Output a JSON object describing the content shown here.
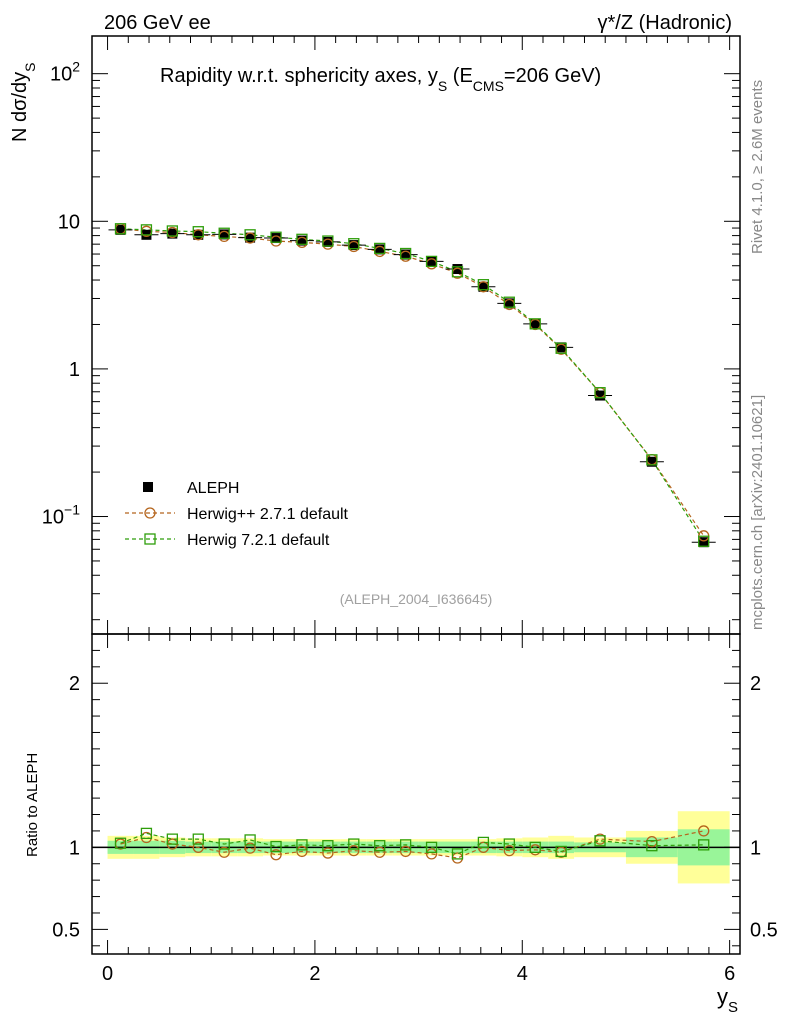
{
  "header": {
    "left_label": "206 GeV ee",
    "right_label": "γ*/Z (Hadronic)"
  },
  "side_labels": {
    "rivet": "Rivet 4.1.0, ≥ 2.6M events",
    "mcplots": "mcplots.cern.ch [arXiv:2401.10621]"
  },
  "colors": {
    "data": "#000000",
    "herwigpp": "#b5651d",
    "herwig7": "#2e9e0a",
    "band_inner": "#99f599",
    "band_outer": "#ffff99"
  },
  "chart_data": [
    {
      "type": "scatter",
      "title": "Rapidity w.r.t. sphericity axes, y_S (E_CMS=206 GeV)",
      "title_parts": {
        "main": "Rapidity w.r.t. sphericity axes, y",
        "sub_s": "S",
        "mid": " (E",
        "sub_cms": "CMS",
        "end": "=206 GeV)"
      },
      "ylabel": "N  dσ/dy_S",
      "ylabel_parts": {
        "main": "N  dσ/dy",
        "sub": "S"
      },
      "xlabel": "y_S",
      "xlabel_parts": {
        "main": "y",
        "sub": "S"
      },
      "yscale": "log",
      "xlim": [
        -0.15,
        6.1
      ],
      "ylim": [
        0.016,
        180
      ],
      "yticks": [
        {
          "value": 100,
          "label": "10",
          "exp": "2"
        },
        {
          "value": 10,
          "label": "10",
          "exp": ""
        },
        {
          "value": 1,
          "label": "1",
          "exp": ""
        },
        {
          "value": 0.1,
          "label": "10",
          "exp": "−1"
        }
      ],
      "x": [
        0.125,
        0.375,
        0.625,
        0.875,
        1.125,
        1.375,
        1.625,
        1.875,
        2.125,
        2.375,
        2.625,
        2.875,
        3.125,
        3.375,
        3.625,
        3.875,
        4.125,
        4.375,
        4.75,
        5.25,
        5.75
      ],
      "series": [
        {
          "name": "ALEPH",
          "marker": "filled-square",
          "values": [
            8.75,
            8.1,
            8.25,
            8.1,
            8.15,
            7.75,
            7.7,
            7.4,
            7.25,
            6.9,
            6.45,
            5.95,
            5.35,
            4.75,
            3.6,
            2.78,
            2.02,
            1.4,
            0.66,
            0.235,
            0.067
          ]
        },
        {
          "name": "Herwig++ 2.7.1 default",
          "marker": "open-circle",
          "values": [
            8.9,
            8.55,
            8.4,
            8.1,
            7.9,
            7.7,
            7.35,
            7.2,
            7.0,
            6.75,
            6.25,
            5.8,
            5.15,
            4.45,
            3.6,
            2.73,
            2.0,
            1.36,
            0.69,
            0.243,
            0.074
          ]
        },
        {
          "name": "Herwig 7.2.1 default",
          "marker": "open-square",
          "values": [
            8.9,
            8.75,
            8.6,
            8.5,
            8.3,
            8.1,
            7.8,
            7.55,
            7.35,
            7.05,
            6.55,
            6.05,
            5.35,
            4.55,
            3.72,
            2.83,
            2.02,
            1.38,
            0.69,
            0.242,
            0.068
          ]
        }
      ],
      "legend": [
        "ALEPH",
        "Herwig++ 2.7.1 default",
        "Herwig 7.2.1 default"
      ],
      "legend_position": "bottom-left",
      "watermark": "(ALEPH_2004_I636645)"
    },
    {
      "type": "line",
      "ylabel": "Ratio to ALEPH",
      "xlabel": "y_S",
      "xlim": [
        -0.15,
        6.1
      ],
      "ylim": [
        0.35,
        2.3
      ],
      "yticks": [
        {
          "value": 0.5,
          "label": "0.5"
        },
        {
          "value": 1,
          "label": "1"
        },
        {
          "value": 2,
          "label": "2"
        }
      ],
      "xticks": [
        {
          "value": 0,
          "label": "0"
        },
        {
          "value": 2,
          "label": "2"
        },
        {
          "value": 4,
          "label": "4"
        },
        {
          "value": 6,
          "label": "6"
        }
      ],
      "x": [
        0.125,
        0.375,
        0.625,
        0.875,
        1.125,
        1.375,
        1.625,
        1.875,
        2.125,
        2.375,
        2.625,
        2.875,
        3.125,
        3.375,
        3.625,
        3.875,
        4.125,
        4.375,
        4.75,
        5.25,
        5.75
      ],
      "bin_edges": [
        0,
        0.25,
        0.5,
        0.75,
        1.0,
        1.25,
        1.5,
        1.75,
        2.0,
        2.25,
        2.5,
        2.75,
        3.0,
        3.25,
        3.5,
        3.75,
        4.0,
        4.25,
        4.5,
        5.0,
        5.5,
        6.0
      ],
      "band_inner": [
        0.04,
        0.04,
        0.04,
        0.035,
        0.035,
        0.035,
        0.035,
        0.035,
        0.035,
        0.035,
        0.035,
        0.035,
        0.035,
        0.035,
        0.035,
        0.035,
        0.035,
        0.035,
        0.03,
        0.06,
        0.11
      ],
      "band_outer": [
        0.07,
        0.07,
        0.06,
        0.055,
        0.055,
        0.055,
        0.05,
        0.05,
        0.05,
        0.05,
        0.05,
        0.05,
        0.05,
        0.05,
        0.05,
        0.055,
        0.06,
        0.07,
        0.06,
        0.1,
        0.22
      ],
      "series": [
        {
          "name": "Herwig++ 2.7.1 default",
          "values": [
            1.02,
            1.06,
            1.02,
            1.0,
            0.97,
            0.995,
            0.955,
            0.975,
            0.965,
            0.98,
            0.97,
            0.975,
            0.96,
            0.935,
            1.0,
            0.98,
            0.985,
            0.97,
            1.05,
            1.035,
            1.1
          ]
        },
        {
          "name": "Herwig 7.2.1 default",
          "values": [
            1.025,
            1.085,
            1.05,
            1.05,
            1.02,
            1.045,
            1.005,
            1.015,
            1.01,
            1.02,
            1.01,
            1.015,
            1.0,
            0.96,
            1.03,
            1.02,
            1.0,
            0.975,
            1.04,
            1.01,
            1.015
          ]
        }
      ]
    }
  ]
}
